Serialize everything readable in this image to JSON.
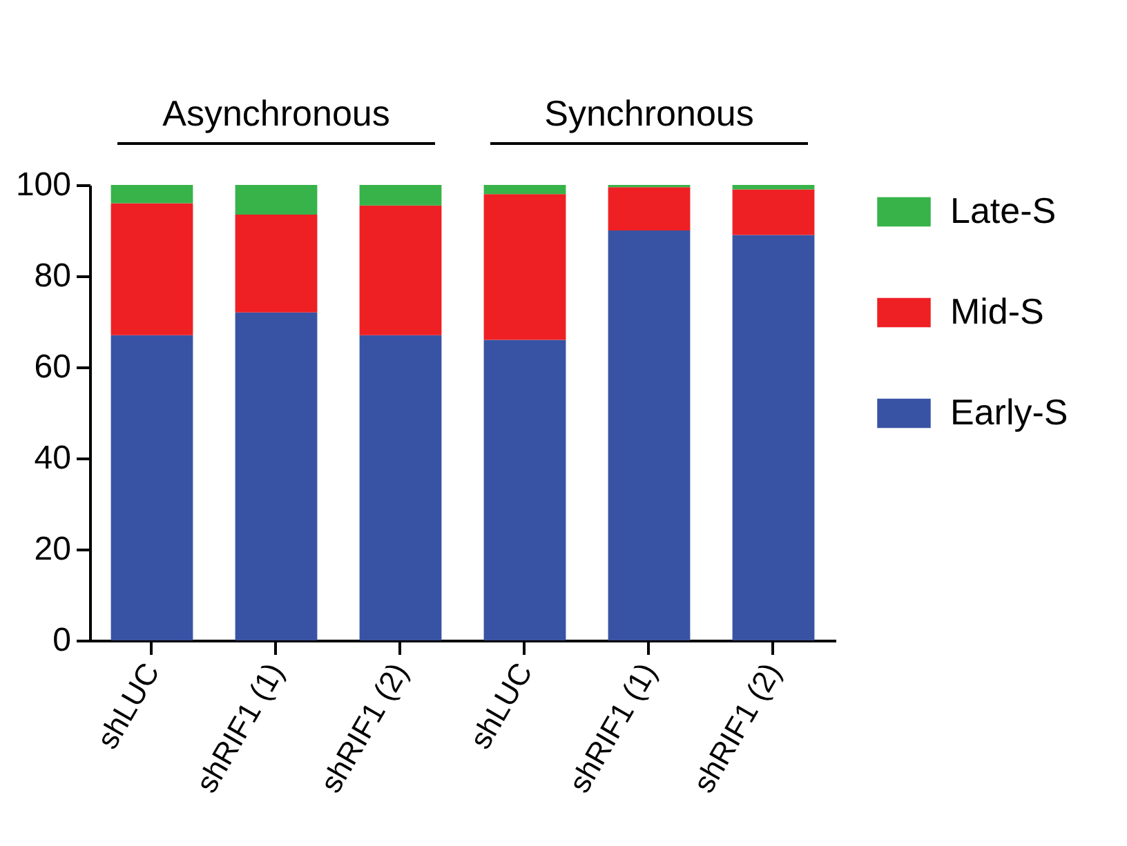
{
  "chart_data": {
    "type": "bar",
    "stacked": true,
    "categories": [
      "shLUC",
      "shRIF1 (1)",
      "shRIF1 (2)",
      "shLUC",
      "shRIF1 (1)",
      "shRIF1 (2)"
    ],
    "series": [
      {
        "name": "Early-S",
        "color": "#3953a4",
        "values": [
          67,
          72,
          67,
          66,
          90,
          89
        ]
      },
      {
        "name": "Mid-S",
        "color": "#ee2024",
        "values": [
          29,
          21.5,
          28.5,
          32,
          9.5,
          10
        ]
      },
      {
        "name": "Late-S",
        "color": "#37b34a",
        "values": [
          4,
          6.5,
          4.5,
          2,
          0.5,
          1
        ]
      }
    ],
    "ylim": [
      0,
      100
    ],
    "yticks": [
      0,
      20,
      40,
      60,
      80,
      100
    ],
    "grid": false,
    "legend": "right",
    "annotations": [
      "Asynchronous",
      "Synchronous"
    ]
  }
}
